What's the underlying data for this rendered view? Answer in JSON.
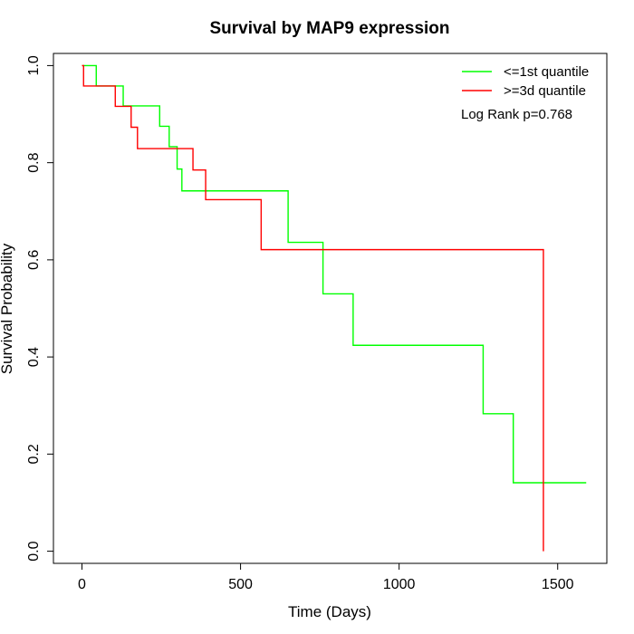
{
  "chart_data": {
    "type": "line",
    "step": true,
    "title": "Survival by MAP9 expression",
    "xlabel": "Time (Days)",
    "ylabel": "Survival Probability",
    "xlim": [
      -90,
      1655
    ],
    "ylim": [
      -0.025,
      1.025
    ],
    "x_ticks": [
      0,
      500,
      1000,
      1500
    ],
    "x_tick_labels": [
      "0",
      "500",
      "1000",
      "1500"
    ],
    "y_ticks": [
      0.0,
      0.2,
      0.4,
      0.6,
      0.8,
      1.0
    ],
    "y_tick_labels": [
      "0.0",
      "0.2",
      "0.4",
      "0.6",
      "0.8",
      "1.0"
    ],
    "legend_position": "top-right",
    "annotation": "Log Rank p=0.768",
    "series": [
      {
        "name": "<=1st quantile",
        "color": "#00ff00",
        "x": [
          0,
          45,
          130,
          245,
          275,
          300,
          315,
          650,
          760,
          855,
          1265,
          1360,
          1590
        ],
        "y": [
          1.0,
          0.958,
          0.917,
          0.875,
          0.833,
          0.787,
          0.742,
          0.636,
          0.53,
          0.424,
          0.283,
          0.141,
          0.141
        ]
      },
      {
        "name": ">=3d quantile",
        "color": "#ff0000",
        "x": [
          0,
          5,
          105,
          155,
          175,
          350,
          390,
          565,
          1455,
          1455
        ],
        "y": [
          1.0,
          0.958,
          0.916,
          0.873,
          0.829,
          0.785,
          0.724,
          0.621,
          0.621,
          0.0
        ]
      }
    ]
  }
}
